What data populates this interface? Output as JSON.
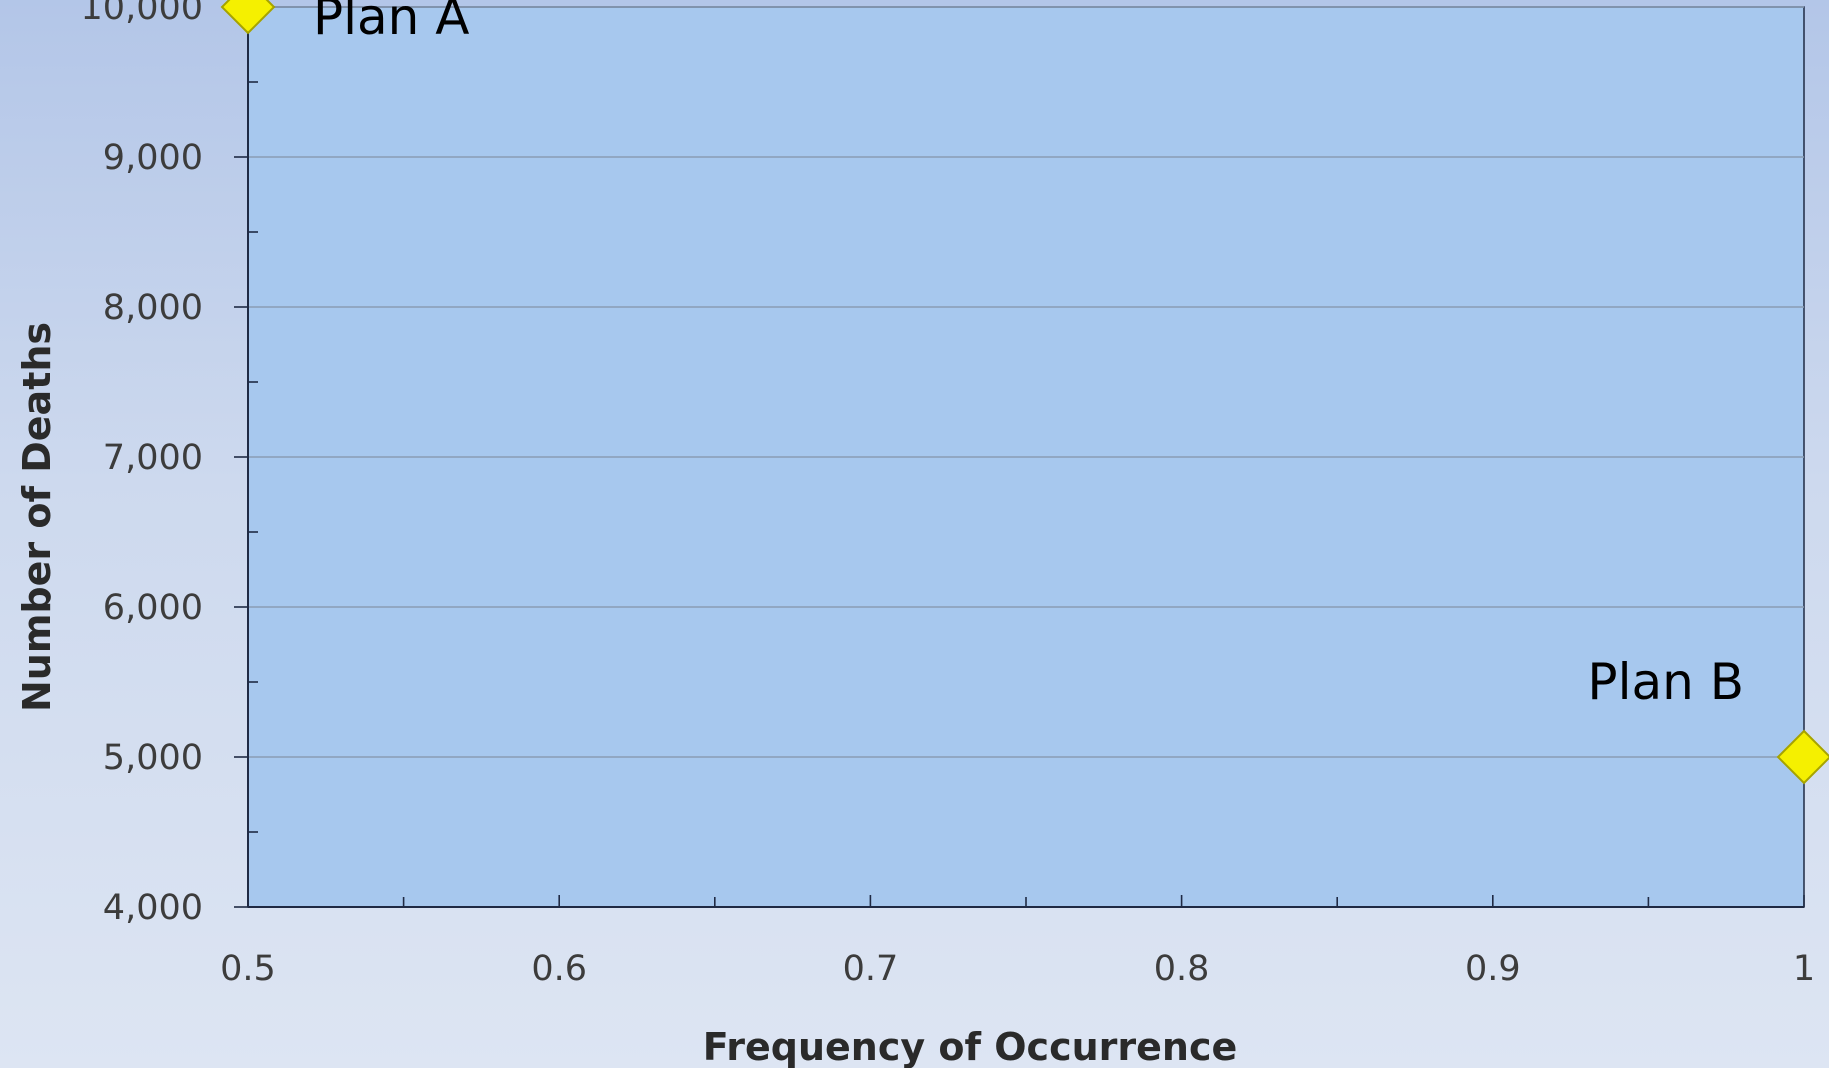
{
  "chart_data": {
    "type": "scatter",
    "title": "",
    "xlabel": "Frequency of Occurrence",
    "ylabel": "Number of Deaths",
    "xlim": [
      0.5,
      1
    ],
    "ylim": [
      4000,
      10000
    ],
    "x_ticks": [
      "0.5",
      "0.6",
      "0.7",
      "0.8",
      "0.9",
      "1"
    ],
    "y_ticks": [
      "4,000",
      "5,000",
      "6,000",
      "7,000",
      "8,000",
      "9,000",
      "10,000"
    ],
    "grid": "horizontal",
    "points": [
      {
        "label": "Plan A",
        "x": 0.5,
        "y": 10000
      },
      {
        "label": "Plan B",
        "x": 1,
        "y": 5000
      }
    ],
    "colors": {
      "plot_area": "#a7c8ee",
      "marker_fill": "#f5f000",
      "marker_stroke": "#a6a300",
      "gridline": "#8a9cb4",
      "axis": "#1f2a44"
    },
    "marker": "diamond"
  }
}
